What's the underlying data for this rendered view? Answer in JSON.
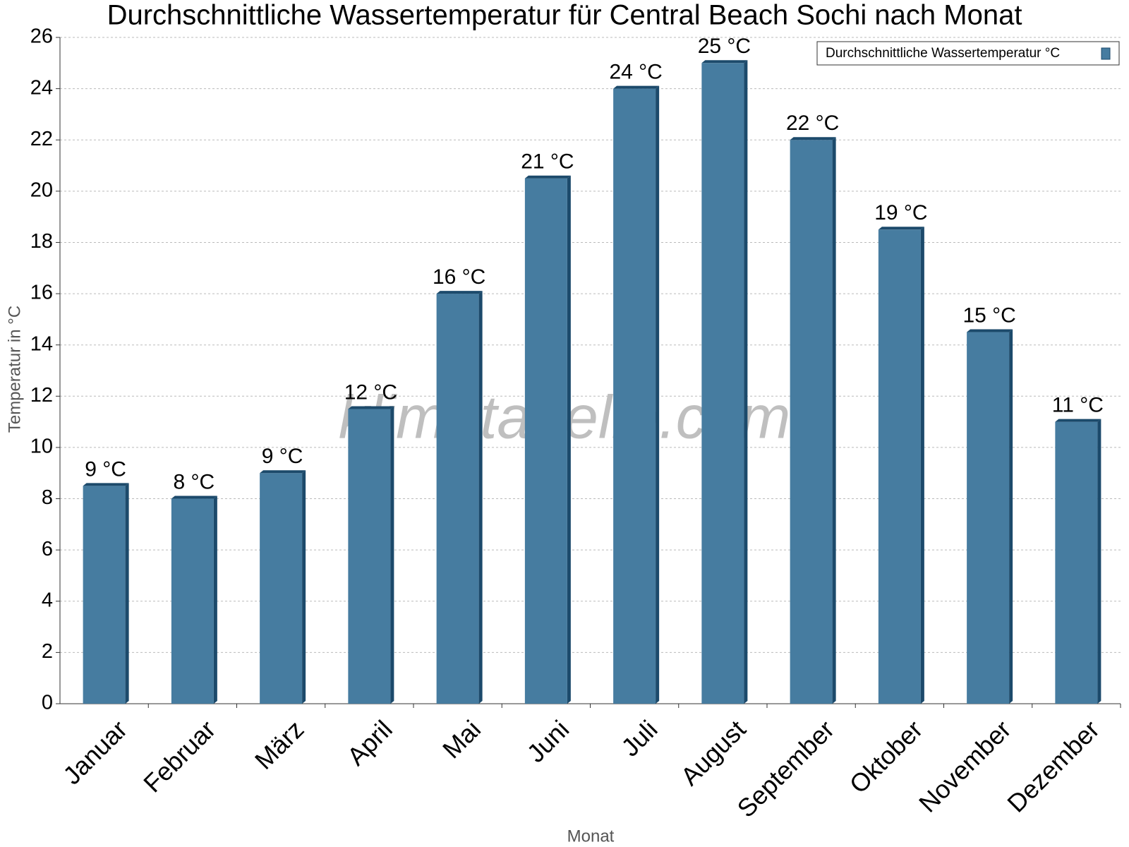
{
  "chart_data": {
    "type": "bar",
    "title": "Durchschnittliche Wassertemperatur für Central Beach Sochi nach Monat",
    "x_label": "Monat",
    "y_label": "Temperatur in °C",
    "watermark": "klimatabelle.com",
    "categories": [
      "Januar",
      "Februar",
      "März",
      "April",
      "Mai",
      "Juni",
      "Juli",
      "August",
      "September",
      "Oktober",
      "November",
      "Dezember"
    ],
    "series": [
      {
        "name": "Durchschnittliche Wassertemperatur °C",
        "color": "#467ca0",
        "values": [
          8.5,
          8,
          9,
          11.5,
          16,
          20.5,
          24,
          25,
          22,
          18.5,
          14.5,
          11
        ],
        "value_labels": [
          "9 °C",
          "8 °C",
          "9 °C",
          "12 °C",
          "16 °C",
          "21 °C",
          "24 °C",
          "25 °C",
          "22 °C",
          "19 °C",
          "15 °C",
          "11 °C"
        ]
      }
    ],
    "ylim": [
      0,
      26
    ],
    "yticks": [
      0,
      2,
      4,
      6,
      8,
      10,
      12,
      14,
      16,
      18,
      20,
      22,
      24,
      26
    ],
    "grid": true,
    "legend": "top-right"
  }
}
